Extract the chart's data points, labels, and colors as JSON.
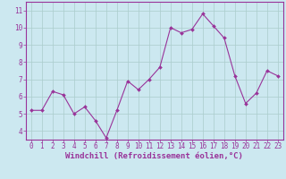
{
  "x": [
    0,
    1,
    2,
    3,
    4,
    5,
    6,
    7,
    8,
    9,
    10,
    11,
    12,
    13,
    14,
    15,
    16,
    17,
    18,
    19,
    20,
    21,
    22,
    23
  ],
  "y": [
    5.2,
    5.2,
    6.3,
    6.1,
    5.0,
    5.4,
    4.6,
    3.6,
    5.2,
    6.9,
    6.4,
    7.0,
    7.7,
    10.0,
    9.7,
    9.9,
    10.8,
    10.1,
    9.4,
    7.2,
    5.6,
    6.2,
    7.5,
    7.2
  ],
  "line_color": "#993399",
  "marker": "D",
  "marker_size": 2.0,
  "background_color": "#cce8f0",
  "grid_color": "#aacccc",
  "xlabel": "Windchill (Refroidissement éolien,°C)",
  "xlabel_color": "#993399",
  "tick_color": "#993399",
  "spine_color": "#993399",
  "ylim": [
    3.5,
    11.5
  ],
  "xlim": [
    -0.5,
    23.5
  ],
  "yticks": [
    4,
    5,
    6,
    7,
    8,
    9,
    10,
    11
  ],
  "xticks": [
    0,
    1,
    2,
    3,
    4,
    5,
    6,
    7,
    8,
    9,
    10,
    11,
    12,
    13,
    14,
    15,
    16,
    17,
    18,
    19,
    20,
    21,
    22,
    23
  ],
  "tick_fontsize": 5.5,
  "xlabel_fontsize": 6.5,
  "linewidth": 0.8
}
